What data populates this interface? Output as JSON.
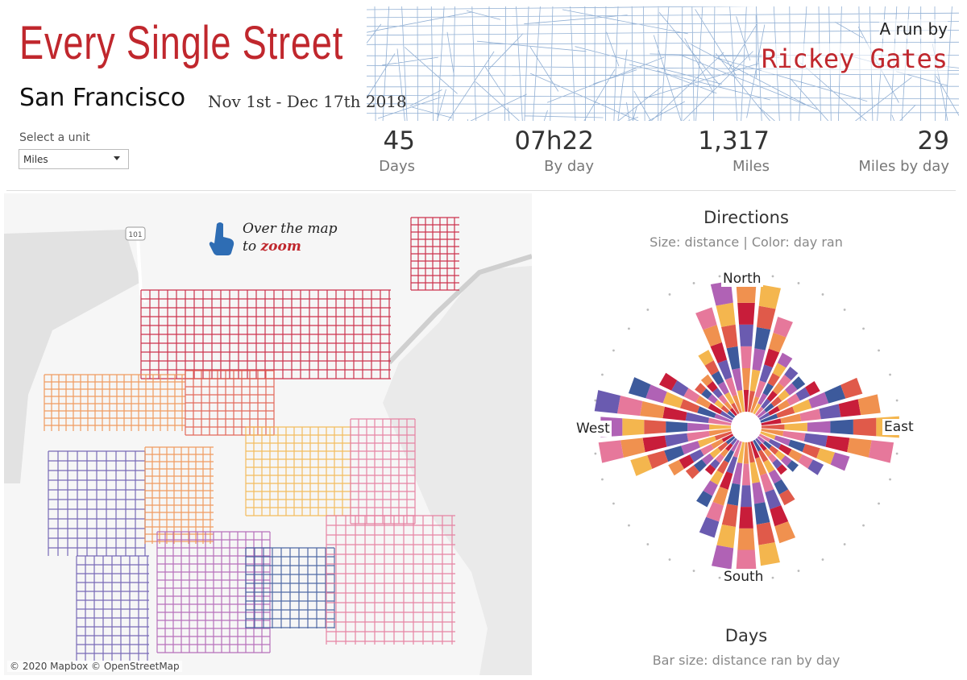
{
  "header": {
    "title": "Every Single Street",
    "city": "San Francisco",
    "date_range": "Nov 1st - Dec 17th 2018",
    "byline_prefix": "A run by",
    "byline_name": "Rickey Gates"
  },
  "unit_selector": {
    "label": "Select a unit",
    "selected": "Miles"
  },
  "kpis": [
    {
      "value": "45",
      "label": "Days"
    },
    {
      "value": "07h22",
      "label": "By day"
    },
    {
      "value": "1,317",
      "label": "Miles"
    },
    {
      "value": "29",
      "label": "Miles by day"
    }
  ],
  "map": {
    "zoom_hint_line1": "Over the map",
    "zoom_hint_prefix": "to",
    "zoom_hint_accent": "zoom",
    "highway_shield": "101",
    "credit": "© 2020 Mapbox © OpenStreetMap",
    "icons": [
      "hand-pointer-icon"
    ]
  },
  "directions": {
    "title": "Directions",
    "subtitle": "Size: distance | Color: day ran",
    "north": "North",
    "south": "South",
    "east": "East",
    "west": "West"
  },
  "days": {
    "title": "Days",
    "subtitle": "Bar size: distance ran by day"
  },
  "colors": {
    "accent_red": "#c0272d",
    "street_blue": "#4a7bb7",
    "palette": [
      "#c81d3a",
      "#e05a4a",
      "#f0914f",
      "#f4b64e",
      "#e6789b",
      "#b062b5",
      "#6a5bb0",
      "#3d5a9c"
    ]
  }
}
